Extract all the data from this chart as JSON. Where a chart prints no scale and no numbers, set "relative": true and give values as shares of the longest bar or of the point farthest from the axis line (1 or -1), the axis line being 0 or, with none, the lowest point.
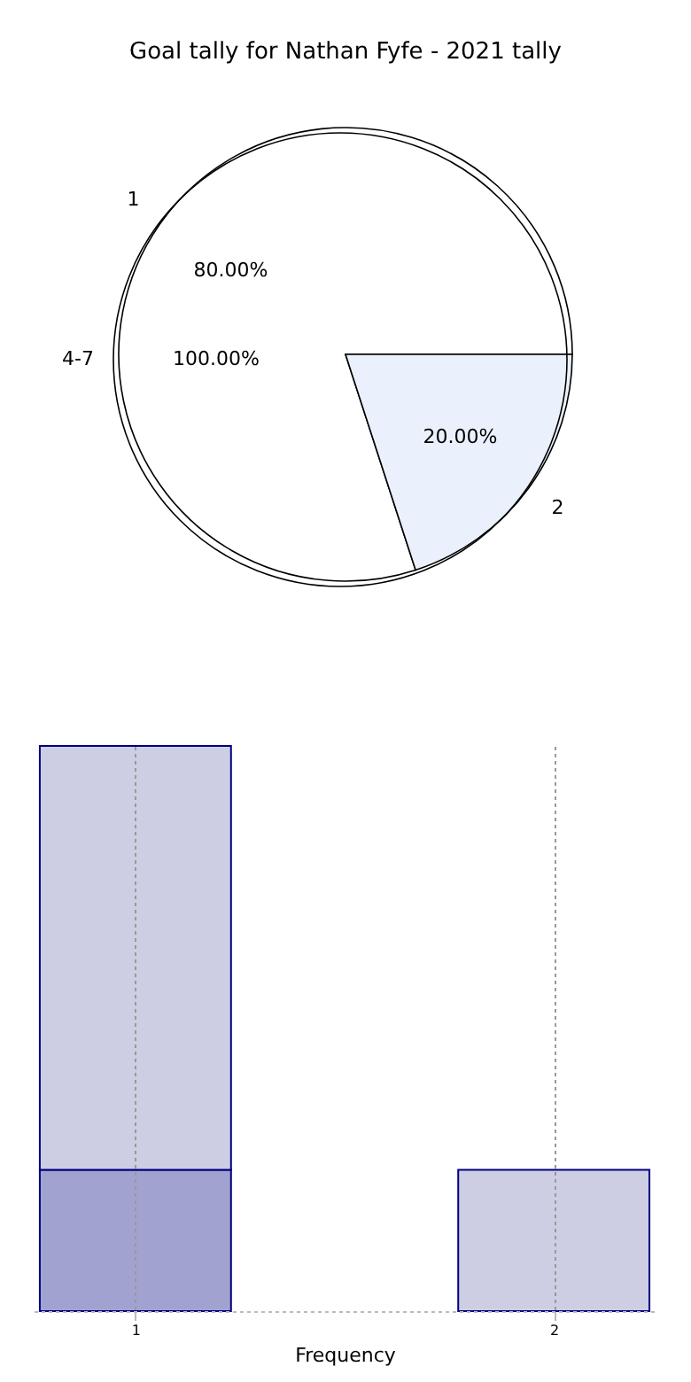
{
  "chart_data": [
    {
      "type": "pie",
      "title": "Goal tally for Nathan Fyfe - 2021 tally",
      "categories": [
        "4-7"
      ],
      "colors": [
        "#ffffff"
      ],
      "values": [
        100
      ],
      "value_labels": [
        "100.00%"
      ]
    },
    {
      "type": "pie",
      "categories": [
        "1",
        "2"
      ],
      "colors": [
        "#ffffff",
        "#ebf1fc"
      ],
      "values": [
        80,
        20
      ],
      "value_labels": [
        "80.00%",
        "20.00%"
      ]
    },
    {
      "type": "bar",
      "relative": true,
      "stacked": true,
      "xlabel": "Frequency",
      "x": [
        1,
        2
      ],
      "xlim": [
        0.778,
        2.222
      ],
      "xticks": [
        1,
        2
      ],
      "grid": "x",
      "series": [
        {
          "color": "#a2a2d0",
          "values": [
            0.25,
            null
          ]
        },
        {
          "color": "#cdcde4",
          "values": [
            0.75,
            0.25
          ]
        }
      ]
    }
  ]
}
